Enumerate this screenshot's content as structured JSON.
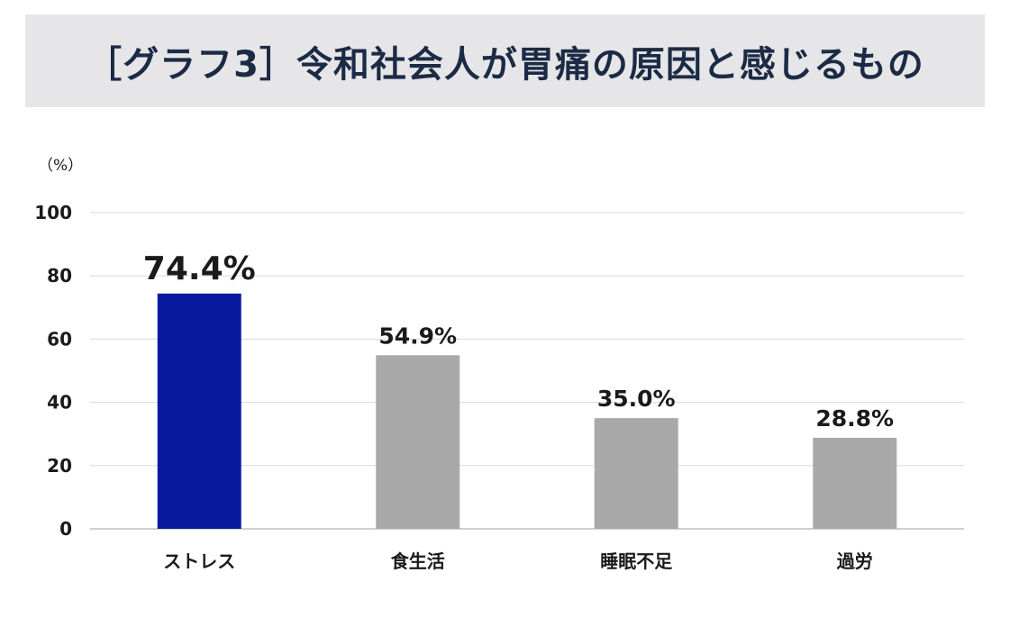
{
  "title": "［グラフ3］令和社会人が胃痛の原因と感じるもの",
  "chart_data": {
    "type": "bar",
    "title": "［グラフ3］令和社会人が胃痛の原因と感じるもの",
    "ylabel": "（%）",
    "xlabel": "",
    "ylim": [
      0,
      100
    ],
    "yticks": [
      0,
      20,
      40,
      60,
      80,
      100
    ],
    "categories": [
      "ストレス",
      "食生活",
      "睡眠不足",
      "過労"
    ],
    "values": [
      74.4,
      54.9,
      35.0,
      28.8
    ],
    "value_labels": [
      "74.4%",
      "54.9%",
      "35.0%",
      "28.8%"
    ],
    "highlight_index": 0,
    "colors": {
      "highlight_bar": "#0a1aa0",
      "bar": "#a9a9a9",
      "highlight_label": "#c2226e",
      "label": "#1a1a1a",
      "grid": "#d9d9d9"
    },
    "grid": true,
    "legend": "none"
  }
}
